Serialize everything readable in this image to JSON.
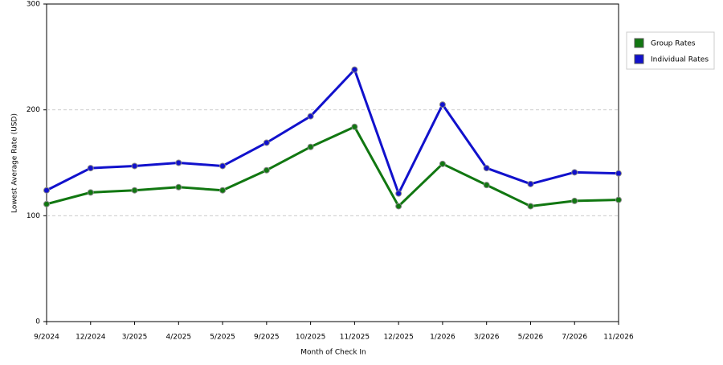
{
  "chart_data": {
    "type": "line",
    "x_label": "Month of Check In",
    "y_label": "Lowest Average Rate (USD)",
    "categories": [
      "9/2024",
      "12/2024",
      "3/2025",
      "4/2025",
      "5/2025",
      "9/2025",
      "10/2025",
      "11/2025",
      "12/2025",
      "1/2026",
      "3/2026",
      "5/2026",
      "7/2026",
      "11/2026"
    ],
    "series": [
      {
        "name": "Group Rates",
        "color": "#117711",
        "values": [
          111,
          122,
          124,
          127,
          124,
          143,
          165,
          184,
          109,
          149,
          129,
          109,
          114,
          115
        ]
      },
      {
        "name": "Individual Rates",
        "color": "#1111cc",
        "values": [
          124,
          145,
          147,
          150,
          147,
          169,
          194,
          238,
          121,
          205,
          145,
          130,
          141,
          140
        ]
      }
    ],
    "ylim": [
      0,
      300
    ],
    "yticks": [
      0,
      100,
      200,
      300
    ],
    "grid": true,
    "legend": "right"
  }
}
